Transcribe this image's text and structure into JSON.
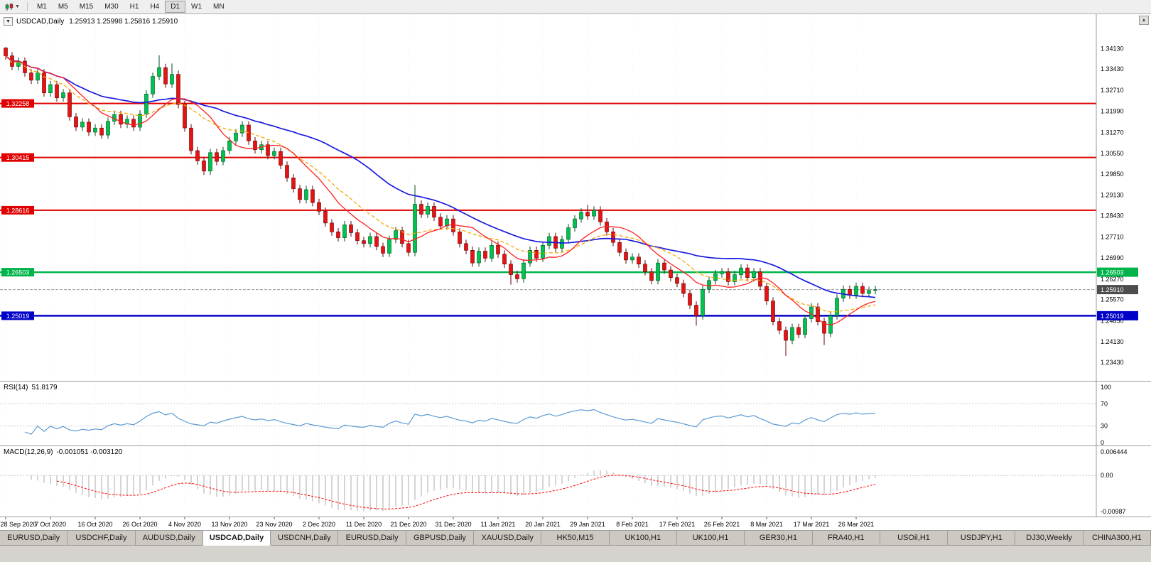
{
  "icons": {
    "dropdown": "▼",
    "scroll_up": "▲"
  },
  "toolbar": {
    "timeframes": [
      "M1",
      "M5",
      "M15",
      "M30",
      "H1",
      "H4",
      "D1",
      "W1",
      "MN"
    ],
    "active_timeframe": "D1"
  },
  "chart": {
    "title": "USDCAD,Daily",
    "ohlc_text": "1.25913 1.25998 1.25816 1.25910",
    "price_axis": [
      "1.34130",
      "1.33430",
      "1.32710",
      "1.31990",
      "1.31270",
      "1.30550",
      "1.29850",
      "1.29130",
      "1.28430",
      "1.27710",
      "1.26990",
      "1.26270",
      "1.25570",
      "1.24850",
      "1.24130",
      "1.23430"
    ],
    "hlines": [
      {
        "label": "1.32258",
        "price": 1.32258,
        "color": "#e00000",
        "width": 2,
        "right_tag": false
      },
      {
        "label": "1.30415",
        "price": 1.30415,
        "color": "#e00000",
        "width": 2,
        "right_tag": false
      },
      {
        "label": "1.28616",
        "price": 1.28616,
        "color": "#e00000",
        "width": 2,
        "right_tag": false
      },
      {
        "label": "1.26503",
        "price": 1.26503,
        "color": "#00b44a",
        "width": 2.5,
        "right_tag": true
      },
      {
        "label": "1.25019",
        "price": 1.25019,
        "color": "#0000c8",
        "width": 2.5,
        "right_tag": true
      }
    ],
    "current_price": {
      "label": "1.25910",
      "value": 1.2591,
      "tag_color": "#4d4d4d"
    }
  },
  "chart_data": {
    "type": "candlestick",
    "symbol": "USDCAD",
    "timeframe": "Daily",
    "date_labels": [
      "28 Sep 2020",
      "7 Oct 2020",
      "16 Oct 2020",
      "26 Oct 2020",
      "4 Nov 2020",
      "13 Nov 2020",
      "23 Nov 2020",
      "2 Dec 2020",
      "11 Dec 2020",
      "21 Dec 2020",
      "31 Dec 2020",
      "11 Jan 2021",
      "20 Jan 2021",
      "29 Jan 2021",
      "8 Feb 2021",
      "17 Feb 2021",
      "26 Feb 2021",
      "8 Mar 2021",
      "17 Mar 2021",
      "26 Mar 2021"
    ],
    "bars_per_label": 7,
    "first_open": 1.3415,
    "wick": 0.0013,
    "closes": [
      1.3388,
      1.3352,
      1.337,
      1.333,
      1.3305,
      1.333,
      1.3262,
      1.329,
      1.3245,
      1.3262,
      1.318,
      1.3145,
      1.3162,
      1.3128,
      1.3142,
      1.3118,
      1.3165,
      1.3188,
      1.3155,
      1.3172,
      1.3145,
      1.319,
      1.3258,
      1.3318,
      1.3348,
      1.3292,
      1.3325,
      1.3222,
      1.3142,
      1.3065,
      1.303,
      1.2995,
      1.3058,
      1.3028,
      1.3065,
      1.3098,
      1.3125,
      1.3152,
      1.3098,
      1.3068,
      1.3085,
      1.3048,
      1.3062,
      1.3015,
      1.2972,
      1.2935,
      1.2898,
      1.2932,
      1.2888,
      1.2858,
      1.2818,
      1.2788,
      1.2768,
      1.2812,
      1.2785,
      1.2758,
      1.2748,
      1.2772,
      1.2738,
      1.2715,
      1.2762,
      1.2792,
      1.2748,
      1.2718,
      1.2882,
      1.2848,
      1.2875,
      1.2838,
      1.2808,
      1.2832,
      1.2788,
      1.2748,
      1.2725,
      1.2682,
      1.2722,
      1.2698,
      1.2742,
      1.2712,
      1.2678,
      1.2642,
      1.2628,
      1.2682,
      1.2725,
      1.2698,
      1.2742,
      1.2772,
      1.2732,
      1.2762,
      1.2802,
      1.2832,
      1.2855,
      1.2842,
      1.2862,
      1.2822,
      1.2788,
      1.2752,
      1.2718,
      1.2692,
      1.2702,
      1.2678,
      1.2652,
      1.2622,
      1.2682,
      1.2658,
      1.2632,
      1.2612,
      1.2578,
      1.2538,
      1.2502,
      1.2592,
      1.2622,
      1.2645,
      1.2652,
      1.2618,
      1.2642,
      1.2665,
      1.2632,
      1.2652,
      1.2602,
      1.2552,
      1.2482,
      1.2452,
      1.2418,
      1.2462,
      1.2438,
      1.2492,
      1.2532,
      1.2482,
      1.2442,
      1.2502,
      1.2562,
      1.2592,
      1.2572,
      1.2602,
      1.2578,
      1.2588,
      1.2591
    ],
    "overrides": {
      "0": {
        "high": 1.3418
      },
      "24": {
        "high": 1.339
      },
      "26": {
        "high": 1.3362
      },
      "64": {
        "high": 1.2948
      },
      "79": {
        "low": 1.2608
      },
      "91": {
        "high": 1.288
      },
      "108": {
        "low": 1.2468
      },
      "122": {
        "low": 1.2365
      },
      "128": {
        "low": 1.2402
      }
    },
    "ma_periods": {
      "fast": 10,
      "mid": 21,
      "slow": 34
    },
    "colors": {
      "up": "#00c24e",
      "up_border": "#00501f",
      "down": "#e81212",
      "down_border": "#600000",
      "ma_fast": "#ff2020",
      "ma_mid": "#f5a800",
      "ma_slow": "#1a1ae0",
      "rsi": "#5b9bd5",
      "macd_hist": "#ababab",
      "macd_signal": "#ff0000"
    }
  },
  "rsi": {
    "label": "RSI(14)",
    "value": "51.8179",
    "levels": [
      "100",
      "70",
      "30",
      "0"
    ]
  },
  "macd": {
    "label": "MACD(12,26,9)",
    "values": "-0.001051 -0.003120",
    "levels": [
      "0.006444",
      "0.00",
      "-0.00987"
    ]
  },
  "tabs": {
    "active_index": 3,
    "items": [
      "EURUSD,Daily",
      "USDCHF,Daily",
      "AUDUSD,Daily",
      "USDCAD,Daily",
      "USDCNH,Daily",
      "EURUSD,Daily",
      "GBPUSD,Daily",
      "XAUUSD,Daily",
      "HK50,M15",
      "UK100,H1",
      "UK100,H1",
      "GER30,H1",
      "FRA40,H1",
      "USOil,H1",
      "USDJPY,H1",
      "DJ30,Weekly",
      "CHINA300,H1"
    ]
  }
}
